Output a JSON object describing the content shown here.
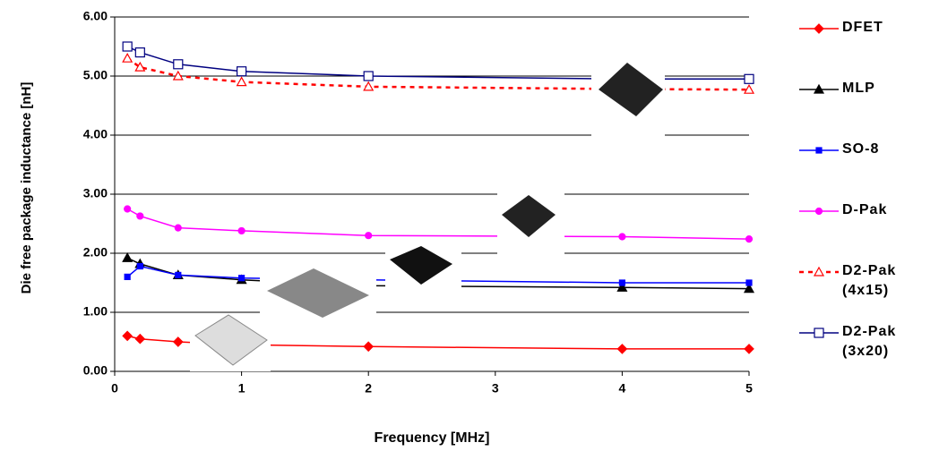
{
  "chart_data": {
    "type": "line",
    "x_label": "Frequency [MHz]",
    "y_label": "Die free package inductance [nH]",
    "xlim": [
      0,
      5
    ],
    "xticks": [
      0,
      1,
      2,
      3,
      4,
      5
    ],
    "ylim": [
      0,
      6
    ],
    "yticks": [
      {
        "value": 0,
        "label": "0.00"
      },
      {
        "value": 1,
        "label": "1.00"
      },
      {
        "value": 2,
        "label": "2.00"
      },
      {
        "value": 3,
        "label": "3.00"
      },
      {
        "value": 4,
        "label": "4.00"
      },
      {
        "value": 5,
        "label": "5.00"
      },
      {
        "value": 6,
        "label": "6.00"
      }
    ],
    "grid": true,
    "x": [
      0.1,
      0.2,
      0.5,
      1,
      2,
      4,
      5
    ],
    "series": [
      {
        "name": "DFET",
        "color": "#ff0000",
        "marker": "diamond",
        "filled": true,
        "dashed": false,
        "values": [
          0.6,
          0.55,
          0.5,
          0.45,
          0.42,
          0.38,
          0.38
        ]
      },
      {
        "name": "MLP",
        "color": "#000000",
        "marker": "triangle",
        "filled": true,
        "dashed": false,
        "values": [
          1.92,
          1.82,
          1.63,
          1.55,
          1.45,
          1.42,
          1.4
        ]
      },
      {
        "name": "SO-8",
        "color": "#0000ff",
        "marker": "square",
        "filled": true,
        "dashed": false,
        "values": [
          1.6,
          1.78,
          1.63,
          1.58,
          1.55,
          1.5,
          1.5
        ]
      },
      {
        "name": "D-Pak",
        "color": "#ff00ff",
        "marker": "circle",
        "filled": true,
        "dashed": false,
        "values": [
          2.75,
          2.63,
          2.43,
          2.38,
          2.3,
          2.28,
          2.24
        ]
      },
      {
        "name": "D2-Pak (4x15)",
        "color": "#ff0000",
        "marker": "triangle",
        "filled": false,
        "dashed": true,
        "values": [
          5.3,
          5.15,
          5.0,
          4.9,
          4.82,
          4.78,
          4.77
        ]
      },
      {
        "name": "D2-Pak (3x20)",
        "color": "#000080",
        "marker": "square",
        "filled": false,
        "dashed": false,
        "values": [
          5.5,
          5.4,
          5.2,
          5.08,
          5.0,
          4.95,
          4.95
        ]
      }
    ]
  }
}
